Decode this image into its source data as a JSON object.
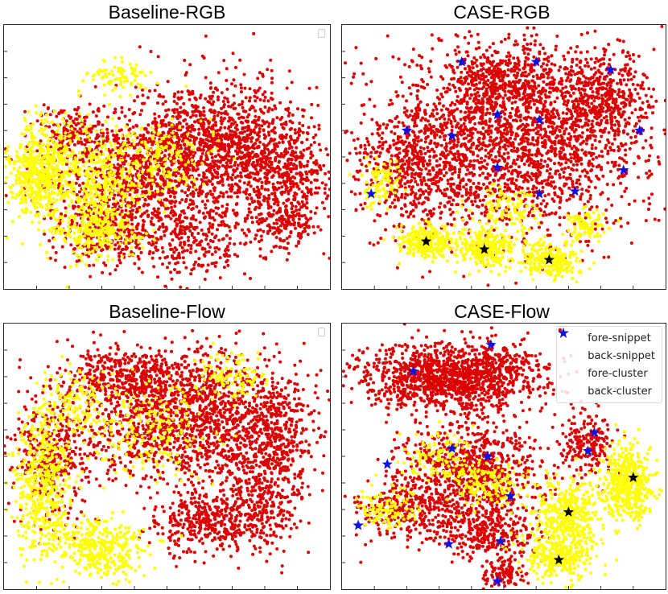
{
  "colors": {
    "fore_snippet": "#ffff00",
    "back_snippet": "#dd0000",
    "fore_cluster": "#000000",
    "back_cluster": "#1010e6"
  },
  "chart_data": [
    {
      "type": "scatter",
      "title": "Baseline-RGB",
      "xlim": [
        0,
        100
      ],
      "ylim": [
        0,
        100
      ],
      "legend": "empty",
      "fore_clusters": [],
      "back_clusters": [],
      "blobs": {
        "back": [
          [
            40,
            45,
            26,
            20,
            900
          ],
          [
            65,
            55,
            22,
            22,
            1000
          ],
          [
            85,
            45,
            14,
            20,
            500
          ],
          [
            55,
            20,
            18,
            14,
            350
          ],
          [
            30,
            22,
            14,
            12,
            250
          ],
          [
            85,
            25,
            10,
            10,
            180
          ],
          [
            20,
            60,
            10,
            10,
            120
          ]
        ],
        "fore": [
          [
            12,
            45,
            10,
            18,
            520
          ],
          [
            30,
            40,
            12,
            22,
            380
          ],
          [
            28,
            22,
            12,
            10,
            200
          ],
          [
            35,
            80,
            8,
            6,
            80
          ],
          [
            50,
            50,
            14,
            14,
            160
          ],
          [
            8,
            40,
            6,
            10,
            100
          ]
        ]
      }
    },
    {
      "type": "scatter",
      "title": "CASE-RGB",
      "xlim": [
        0,
        100
      ],
      "ylim": [
        0,
        100
      ],
      "legend": "none",
      "fore_clusters": [
        [
          26,
          18
        ],
        [
          44,
          15
        ],
        [
          64,
          11
        ]
      ],
      "back_clusters": [
        [
          37,
          86
        ],
        [
          60,
          86
        ],
        [
          83,
          83
        ],
        [
          48,
          66
        ],
        [
          61,
          64
        ],
        [
          20,
          60
        ],
        [
          34,
          58
        ],
        [
          48,
          46
        ],
        [
          92,
          60
        ],
        [
          87,
          45
        ],
        [
          9,
          36
        ],
        [
          61,
          36
        ],
        [
          72,
          37
        ]
      ],
      "blobs": {
        "back": [
          [
            50,
            55,
            38,
            32,
            2200
          ],
          [
            80,
            70,
            14,
            18,
            500
          ],
          [
            20,
            45,
            12,
            18,
            300
          ],
          [
            50,
            80,
            16,
            12,
            350
          ]
        ],
        "fore": [
          [
            26,
            18,
            8,
            6,
            260
          ],
          [
            44,
            15,
            8,
            6,
            260
          ],
          [
            64,
            11,
            8,
            6,
            260
          ],
          [
            12,
            40,
            5,
            8,
            90
          ],
          [
            75,
            25,
            6,
            6,
            90
          ],
          [
            50,
            30,
            10,
            8,
            120
          ]
        ]
      }
    },
    {
      "type": "scatter",
      "title": "Baseline-Flow",
      "xlim": [
        0,
        100
      ],
      "ylim": [
        0,
        100
      ],
      "legend": "empty",
      "fore_clusters": [],
      "back_clusters": [],
      "blobs": {
        "back": [
          [
            55,
            65,
            30,
            22,
            1400
          ],
          [
            82,
            55,
            12,
            24,
            500
          ],
          [
            15,
            50,
            10,
            22,
            350
          ],
          [
            60,
            25,
            14,
            12,
            350
          ],
          [
            78,
            30,
            10,
            14,
            250
          ],
          [
            40,
            80,
            22,
            10,
            400
          ]
        ],
        "fore": [
          [
            12,
            40,
            8,
            25,
            500
          ],
          [
            30,
            15,
            12,
            10,
            360
          ],
          [
            45,
            60,
            16,
            16,
            200
          ],
          [
            22,
            70,
            10,
            10,
            140
          ],
          [
            70,
            80,
            10,
            8,
            100
          ]
        ]
      }
    },
    {
      "type": "scatter",
      "title": "CASE-Flow",
      "xlim": [
        0,
        100
      ],
      "ylim": [
        0,
        100
      ],
      "legend": "full",
      "fore_clusters": [
        [
          90,
          42
        ],
        [
          70,
          29
        ],
        [
          67,
          11
        ]
      ],
      "back_clusters": [
        [
          46,
          92
        ],
        [
          22,
          82
        ],
        [
          78,
          59
        ],
        [
          34,
          53
        ],
        [
          45,
          50
        ],
        [
          76,
          52
        ],
        [
          14,
          47
        ],
        [
          52,
          35
        ],
        [
          5,
          24
        ],
        [
          33,
          17
        ],
        [
          49,
          18
        ],
        [
          48,
          3
        ]
      ],
      "blobs": {
        "back": [
          [
            35,
            80,
            26,
            12,
            1400
          ],
          [
            40,
            45,
            20,
            16,
            800
          ],
          [
            20,
            30,
            14,
            10,
            300
          ],
          [
            45,
            22,
            14,
            10,
            350
          ],
          [
            75,
            55,
            8,
            12,
            200
          ],
          [
            50,
            5,
            6,
            6,
            120
          ]
        ],
        "fore": [
          [
            88,
            40,
            8,
            12,
            450
          ],
          [
            70,
            28,
            10,
            12,
            380
          ],
          [
            67,
            12,
            10,
            8,
            280
          ],
          [
            45,
            40,
            10,
            8,
            150
          ],
          [
            15,
            30,
            8,
            6,
            110
          ],
          [
            30,
            50,
            10,
            8,
            110
          ]
        ]
      }
    }
  ],
  "legend_labels": {
    "fore_snippet": "fore-snippet",
    "back_snippet": "back-snippet",
    "fore_cluster": "fore-cluster",
    "back_cluster": "back-cluster"
  }
}
